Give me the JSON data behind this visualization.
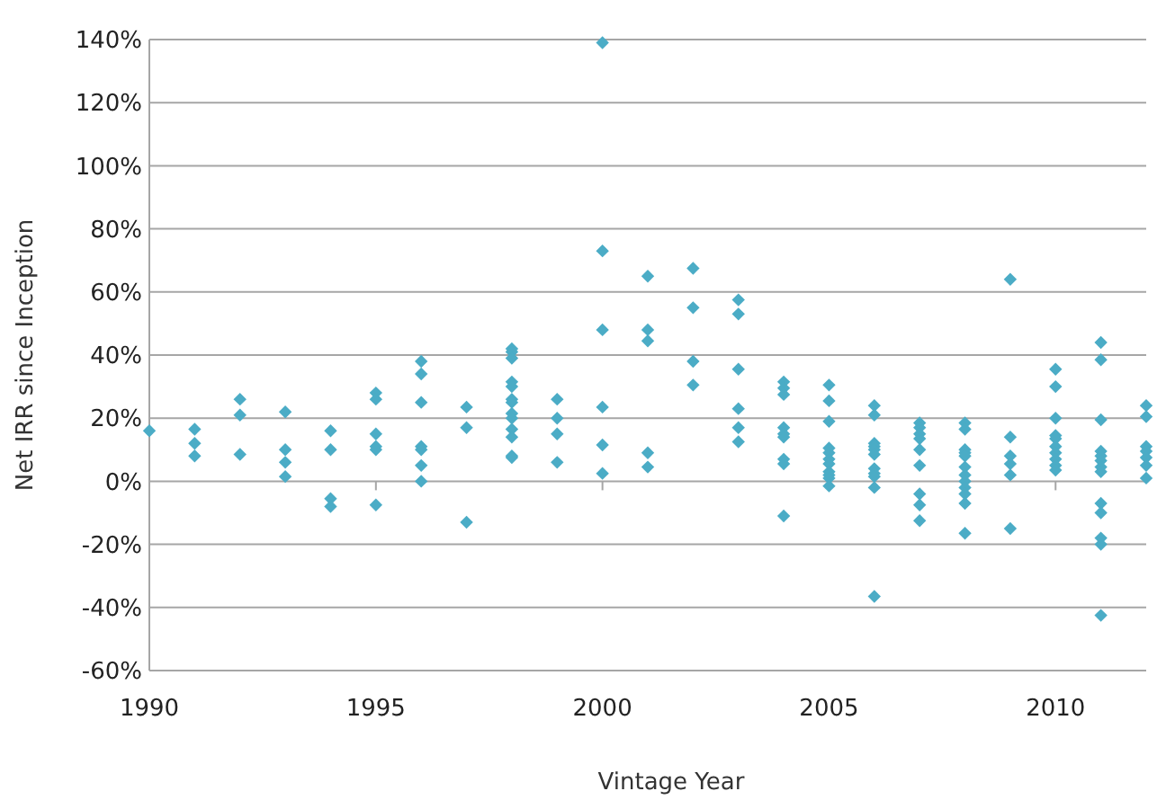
{
  "chart_data": {
    "type": "scatter",
    "xlabel": "Vintage Year",
    "ylabel": "Net IRR since Inception",
    "xlim": [
      1990,
      2012
    ],
    "xticks": [
      1990,
      1995,
      2000,
      2005,
      2010
    ],
    "ylim": [
      -60,
      140
    ],
    "yticks": [
      {
        "value": -60,
        "label": "-60%"
      },
      {
        "value": -40,
        "label": "-40%"
      },
      {
        "value": -20,
        "label": "-20%"
      },
      {
        "value": 0,
        "label": "0%"
      },
      {
        "value": 20,
        "label": "20%"
      },
      {
        "value": 40,
        "label": "40%"
      },
      {
        "value": 60,
        "label": "60%"
      },
      {
        "value": 80,
        "label": "80%"
      },
      {
        "value": 100,
        "label": "100%"
      },
      {
        "value": 120,
        "label": "120%"
      },
      {
        "value": 140,
        "label": "140%"
      }
    ],
    "grid": "y",
    "marker": "diamond",
    "series": [
      {
        "color": "#4bacc6",
        "x": [
          1990,
          1991,
          1991,
          1991,
          1992,
          1992,
          1992,
          1993,
          1993,
          1993,
          1993,
          1994,
          1994,
          1994,
          1994,
          1995,
          1995,
          1995,
          1995,
          1995,
          1995,
          1996,
          1996,
          1996,
          1996,
          1996,
          1996,
          1996,
          1997,
          1997,
          1997,
          1998,
          1998,
          1998,
          1998,
          1998,
          1998,
          1998,
          1998,
          1998,
          1998,
          1998,
          1998,
          1998,
          1999,
          1999,
          1999,
          1999,
          2000,
          2000,
          2000,
          2000,
          2000,
          2000,
          2001,
          2001,
          2001,
          2001,
          2001,
          2002,
          2002,
          2002,
          2002,
          2003,
          2003,
          2003,
          2003,
          2003,
          2003,
          2004,
          2004,
          2004,
          2004,
          2004,
          2004,
          2004,
          2004,
          2004,
          2005,
          2005,
          2005,
          2005,
          2005,
          2005,
          2005,
          2005,
          2005,
          2005,
          2005,
          2006,
          2006,
          2006,
          2006,
          2006,
          2006,
          2006,
          2006,
          2006,
          2006,
          2006,
          2007,
          2007,
          2007,
          2007,
          2007,
          2007,
          2007,
          2007,
          2007,
          2008,
          2008,
          2008,
          2008,
          2008,
          2008,
          2008,
          2008,
          2008,
          2008,
          2008,
          2008,
          2009,
          2009,
          2009,
          2009,
          2009,
          2009,
          2010,
          2010,
          2010,
          2010,
          2010,
          2010,
          2010,
          2010,
          2010,
          2010,
          2011,
          2011,
          2011,
          2011,
          2011,
          2011,
          2011,
          2011,
          2011,
          2011,
          2011,
          2011,
          2011,
          2012,
          2012,
          2012,
          2012,
          2012,
          2012,
          2012
        ],
        "values": [
          16,
          16.5,
          12,
          8,
          26,
          21,
          8.5,
          22,
          10,
          6,
          1.5,
          16,
          10,
          -5.5,
          -8,
          28,
          26,
          15,
          11,
          10,
          -7.5,
          38,
          34,
          25,
          11,
          10,
          5,
          0,
          23.5,
          17,
          -13,
          42,
          41,
          39,
          31.5,
          30,
          26,
          25,
          21.5,
          20,
          16.5,
          14,
          8,
          7.5,
          26,
          20,
          15,
          6,
          139,
          73,
          48,
          23.5,
          11.5,
          2.5,
          65,
          48,
          44.5,
          9,
          4.5,
          67.5,
          55,
          38,
          30.5,
          57.5,
          53,
          35.5,
          23,
          17,
          12.5,
          31.5,
          29.5,
          27.5,
          17,
          15,
          14,
          7,
          5.5,
          -11,
          30.5,
          25.5,
          19,
          10.5,
          9,
          7,
          5.5,
          3,
          2,
          1,
          -1.5,
          24,
          21,
          12,
          11,
          10,
          8.5,
          4,
          2.5,
          1.5,
          -2,
          -36.5,
          18.5,
          17,
          15,
          13.5,
          10,
          5,
          -4,
          -7.5,
          -12.5,
          18.5,
          16.5,
          10,
          9,
          8,
          4.5,
          2,
          0,
          -2,
          -4,
          -7,
          -16.5,
          64,
          14,
          8,
          5.5,
          2,
          -15,
          35.5,
          30,
          20,
          14.5,
          13.5,
          11,
          9,
          7,
          5,
          3.5,
          44,
          38.5,
          19.5,
          9.5,
          8,
          6.5,
          4.5,
          3,
          -7,
          -10,
          -18,
          -20,
          -42.5,
          24,
          20.5,
          11,
          9.5,
          7.5,
          5,
          1
        ]
      }
    ]
  }
}
